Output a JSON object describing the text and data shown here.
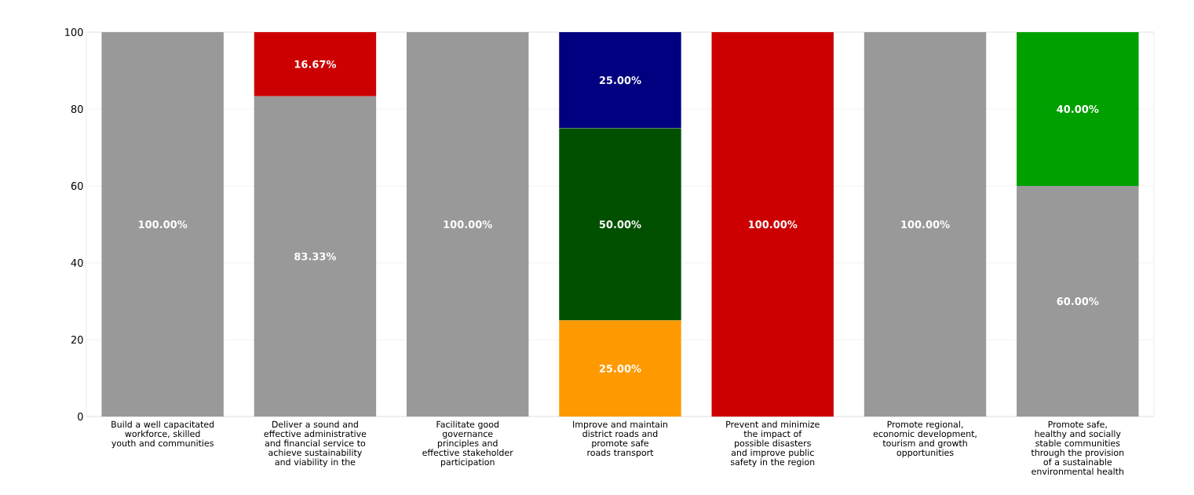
{
  "chart_data": {
    "type": "bar",
    "stacked": true,
    "categories": [
      "Build a well capacitated workforce, skilled youth and communities",
      "Deliver a sound and effective administrative and financial service to achieve sustainability and viability in the",
      "Facilitate good governance principles and effective stakeholder participation",
      "Improve and maintain district roads and promote safe roads transport",
      "Prevent and minimize the impact of possible disasters and improve public safety in the region",
      "Promote regional, economic development, tourism and growth opportunities",
      "Promote safe, healthy and socially stable communities through the provision of a sustainable environmental health"
    ],
    "series": [
      {
        "color": "#999999",
        "values": [
          100,
          83.33,
          100,
          null,
          null,
          100,
          60
        ],
        "value_labels": [
          "100.00%",
          "83.33%",
          "100.00%",
          null,
          null,
          "100.00%",
          "60.00%"
        ]
      },
      {
        "color": "#ff9900",
        "values": [
          null,
          null,
          null,
          25,
          null,
          null,
          null
        ],
        "value_labels": [
          null,
          null,
          null,
          "25.00%",
          null,
          null,
          null
        ]
      },
      {
        "color": "#005000",
        "values": [
          null,
          null,
          null,
          50,
          null,
          null,
          null
        ],
        "value_labels": [
          null,
          null,
          null,
          "50.00%",
          null,
          null,
          null
        ]
      },
      {
        "color": "#cc0000",
        "values": [
          null,
          16.67,
          null,
          null,
          100,
          null,
          null
        ],
        "value_labels": [
          null,
          "16.67%",
          null,
          null,
          "100.00%",
          null,
          null
        ]
      },
      {
        "color": "#000080",
        "values": [
          null,
          null,
          null,
          25,
          null,
          null,
          null
        ],
        "value_labels": [
          null,
          null,
          null,
          "25.00%",
          null,
          null,
          null
        ]
      },
      {
        "color": "#00a000",
        "values": [
          null,
          null,
          null,
          null,
          null,
          null,
          40
        ],
        "value_labels": [
          null,
          null,
          null,
          null,
          null,
          null,
          "40.00%"
        ]
      }
    ],
    "ylim": [
      0,
      100
    ],
    "yticks": [
      0,
      20,
      40,
      60,
      80,
      100
    ],
    "grid": "y"
  }
}
